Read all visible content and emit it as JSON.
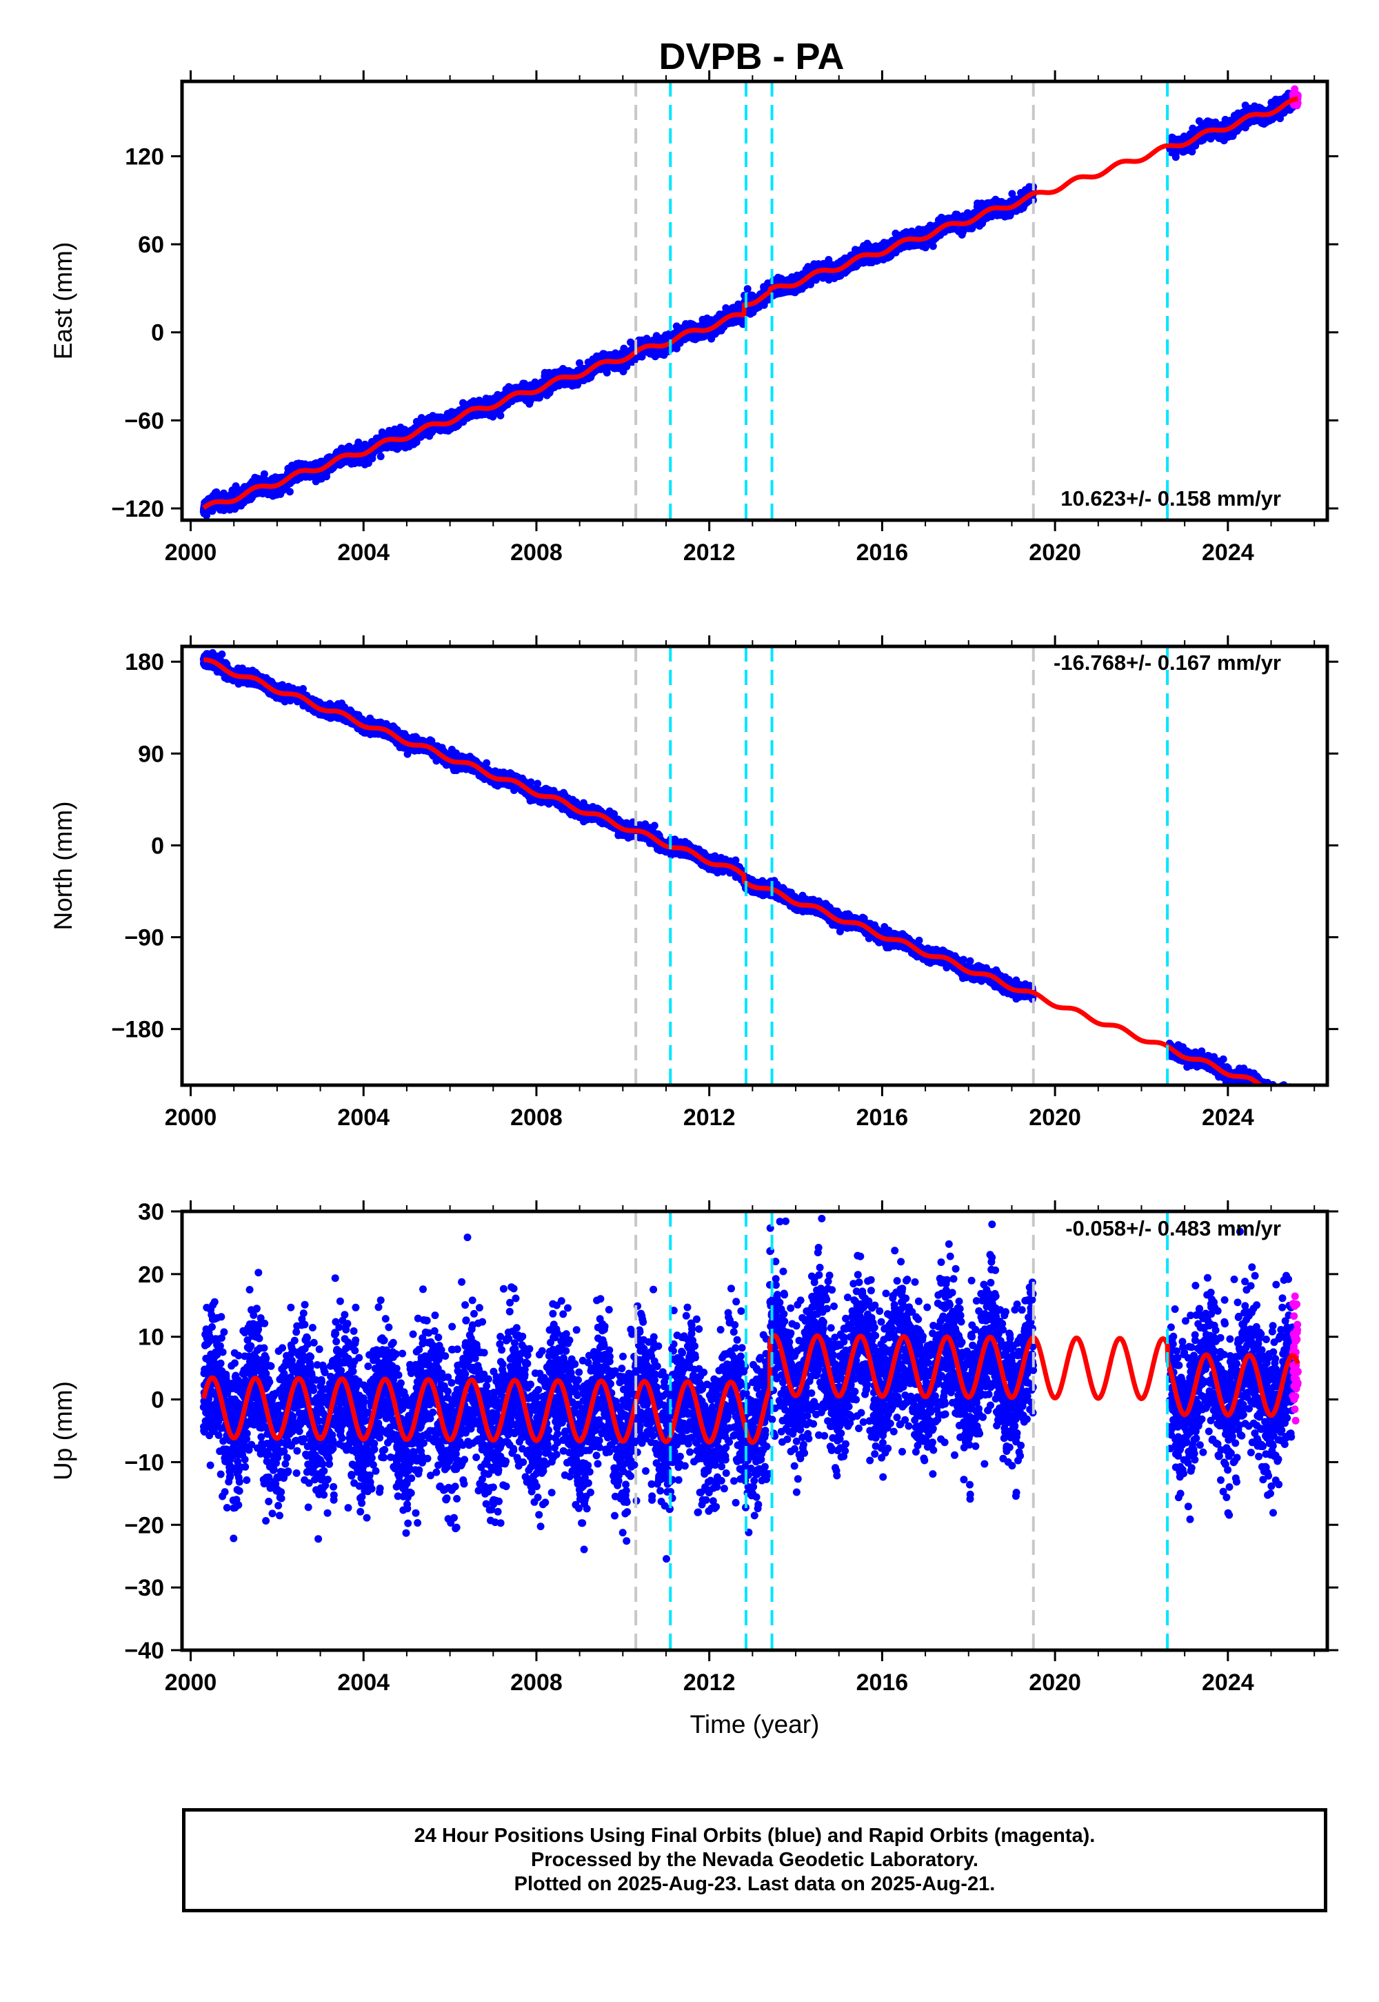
{
  "title": "DVPB - PA",
  "colors": {
    "final_orbits": "#0000ff",
    "rapid_orbits": "#ff00ff",
    "model": "#ff0000",
    "equipment_change": "#c8c8c8",
    "event": "#00e5ff"
  },
  "chart_data": [
    {
      "type": "scatter",
      "panel": "east",
      "ylabel": "East (mm)",
      "xlabel": "",
      "xlim": [
        1999.8,
        2026.3
      ],
      "ylim": [
        -128,
        171
      ],
      "xticks": [
        2000,
        2004,
        2008,
        2012,
        2016,
        2020,
        2024
      ],
      "yticks": [
        -120,
        -60,
        0,
        60,
        120
      ],
      "ytick_labels": [
        "−120",
        "−60",
        "0",
        "60",
        "120"
      ],
      "rate_text": "10.623+/- 0.158 mm/yr",
      "rate_value": 10.623,
      "rate_sigma": 0.158,
      "intercept_2012": 4.0,
      "seasonal_amplitude": 2.0,
      "scatter_sigma": 2.5,
      "offsets": [
        {
          "x": 2012.8,
          "dy": 7
        },
        {
          "x": 2013.4,
          "dy": 2
        }
      ],
      "gray_lines_x": [
        2010.3,
        2019.5
      ],
      "cyan_lines_x": [
        2011.1,
        2012.85,
        2013.45,
        2022.6
      ],
      "data_start": 2000.3,
      "data_gap": [
        2019.5,
        2022.65
      ],
      "data_end": 2025.62,
      "rapid_start": 2025.5,
      "grid": false
    },
    {
      "type": "scatter",
      "panel": "north",
      "ylabel": "North (mm)",
      "xlabel": "",
      "xlim": [
        1999.8,
        2026.3
      ],
      "ylim": [
        -235,
        195
      ],
      "xticks": [
        2000,
        2004,
        2008,
        2012,
        2016,
        2020,
        2024
      ],
      "yticks": [
        -180,
        -90,
        0,
        90,
        180
      ],
      "ytick_labels": [
        "−180",
        "−90",
        "0",
        "90",
        "180"
      ],
      "rate_text": "-16.768+/- 0.167 mm/yr",
      "rate_value": -16.768,
      "rate_sigma": 0.167,
      "intercept_2012": -15.0,
      "seasonal_amplitude": 2.5,
      "scatter_sigma": 3.0,
      "offsets": [
        {
          "x": 2012.8,
          "dy": -6
        }
      ],
      "gray_lines_x": [
        2010.3,
        2019.5
      ],
      "cyan_lines_x": [
        2011.1,
        2012.85,
        2013.45,
        2022.6
      ],
      "data_start": 2000.3,
      "data_gap": [
        2019.5,
        2022.65
      ],
      "data_end": 2025.62,
      "rapid_start": 2025.5,
      "grid": false
    },
    {
      "type": "scatter",
      "panel": "up",
      "ylabel": "Up (mm)",
      "xlabel": "Time (year)",
      "xlim": [
        1999.8,
        2026.3
      ],
      "ylim": [
        -40,
        30
      ],
      "xticks": [
        2000,
        2004,
        2008,
        2012,
        2016,
        2020,
        2024
      ],
      "yticks": [
        -40,
        -30,
        -20,
        -10,
        0,
        10,
        20,
        30
      ],
      "ytick_labels": [
        "−40",
        "−30",
        "−20",
        "−10",
        "0",
        "10",
        "20",
        "30"
      ],
      "rate_text": "-0.058+/- 0.483 mm/yr",
      "rate_value": -0.058,
      "rate_sigma": 0.483,
      "intercept_2012": -2.0,
      "seasonal_amplitude": 4.8,
      "scatter_sigma": 5.5,
      "offsets": [
        {
          "x": 2013.4,
          "dy": 7.5
        },
        {
          "x": 2022.6,
          "dy": -2.5
        }
      ],
      "gray_lines_x": [
        2010.3,
        2019.5
      ],
      "cyan_lines_x": [
        2011.1,
        2012.85,
        2013.45,
        2022.6
      ],
      "data_start": 2000.3,
      "data_gap": [
        2019.5,
        2022.65
      ],
      "data_end": 2025.62,
      "rapid_start": 2025.5,
      "grid": false
    }
  ],
  "caption": {
    "line1": "24 Hour Positions Using Final Orbits (blue) and Rapid Orbits (magenta).",
    "line2": "Processed by the Nevada Geodetic Laboratory.",
    "line3": "Plotted on 2025-Aug-23. Last data on 2025-Aug-21."
  }
}
